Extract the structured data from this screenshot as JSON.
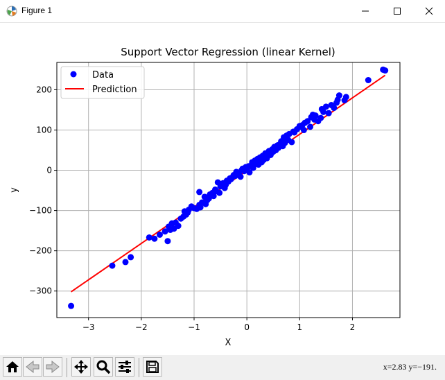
{
  "window": {
    "title": "Figure 1",
    "icons": [
      "app-icon",
      "minimize-icon",
      "maximize-icon",
      "close-icon"
    ]
  },
  "toolbar": {
    "buttons": [
      "home-icon",
      "back-icon",
      "forward-icon",
      "pan-icon",
      "zoom-icon",
      "subplots-icon",
      "save-icon"
    ],
    "coords_text": "x=2.83 y=−191."
  },
  "colors": {
    "data_points": "#0000ff",
    "prediction_line": "#ff0000",
    "grid": "#b0b0b0"
  },
  "chart_data": {
    "type": "scatter",
    "title": "Support Vector Regression (linear Kernel)",
    "xlabel": "X",
    "ylabel": "y",
    "xlim": [
      -3.6,
      2.9
    ],
    "ylim": [
      -366,
      268
    ],
    "xticks": [
      -3,
      -2,
      -1,
      0,
      1,
      2
    ],
    "xtick_labels": [
      "−3",
      "−2",
      "−1",
      "0",
      "1",
      "2"
    ],
    "yticks": [
      -300,
      -200,
      -100,
      0,
      100,
      200
    ],
    "ytick_labels": [
      "−300",
      "−200",
      "−100",
      "0",
      "100",
      "200"
    ],
    "grid": true,
    "legend": {
      "position": "top-left",
      "entries": [
        "Data",
        "Prediction"
      ]
    },
    "series": [
      {
        "name": "Data",
        "kind": "scatter",
        "x": [
          -3.33,
          -2.55,
          -2.3,
          -2.2,
          -1.85,
          -1.75,
          -1.65,
          -1.55,
          -1.5,
          -1.48,
          -1.45,
          -1.42,
          -1.38,
          -1.35,
          -1.3,
          -1.25,
          -1.2,
          -1.18,
          -1.15,
          -1.12,
          -1.1,
          -1.05,
          -1.0,
          -0.95,
          -0.9,
          -0.9,
          -0.88,
          -0.85,
          -0.8,
          -0.78,
          -0.75,
          -0.72,
          -0.7,
          -0.68,
          -0.65,
          -0.63,
          -0.6,
          -0.58,
          -0.55,
          -0.52,
          -0.5,
          -0.48,
          -0.45,
          -0.42,
          -0.4,
          -0.38,
          -0.35,
          -0.32,
          -0.3,
          -0.28,
          -0.25,
          -0.22,
          -0.2,
          -0.18,
          -0.15,
          -0.12,
          -0.1,
          -0.08,
          -0.05,
          -0.02,
          0.0,
          0.03,
          0.05,
          0.08,
          0.1,
          0.12,
          0.15,
          0.18,
          0.2,
          0.22,
          0.25,
          0.28,
          0.3,
          0.32,
          0.35,
          0.38,
          0.4,
          0.42,
          0.45,
          0.48,
          0.5,
          0.52,
          0.55,
          0.58,
          0.6,
          0.62,
          0.65,
          0.68,
          0.7,
          0.72,
          0.75,
          0.78,
          0.8,
          0.85,
          0.88,
          0.9,
          0.95,
          1.0,
          1.02,
          1.05,
          1.08,
          1.1,
          1.15,
          1.2,
          1.22,
          1.25,
          1.28,
          1.3,
          1.35,
          1.4,
          1.42,
          1.45,
          1.5,
          1.55,
          1.6,
          1.65,
          1.7,
          1.72,
          1.75,
          1.85,
          1.88,
          2.3,
          2.58,
          2.62
        ],
        "y": [
          -337,
          -237,
          -228,
          -216,
          -167,
          -170,
          -160,
          -152,
          -176,
          -140,
          -148,
          -132,
          -145,
          -130,
          -138,
          -120,
          -115,
          -102,
          -110,
          -105,
          -98,
          -90,
          -94,
          -96,
          -54,
          -86,
          -92,
          -80,
          -66,
          -84,
          -74,
          -70,
          -60,
          -62,
          -56,
          -64,
          -48,
          -52,
          -30,
          -56,
          -40,
          -34,
          -32,
          -44,
          -36,
          -26,
          -28,
          -20,
          -22,
          -18,
          -12,
          -14,
          -4,
          -10,
          -6,
          -16,
          0,
          4,
          -2,
          8,
          2,
          10,
          -5,
          12,
          20,
          6,
          24,
          16,
          28,
          14,
          32,
          20,
          36,
          26,
          42,
          30,
          40,
          48,
          38,
          52,
          46,
          58,
          50,
          62,
          56,
          64,
          72,
          60,
          82,
          68,
          86,
          76,
          90,
          70,
          96,
          94,
          102,
          110,
          108,
          112,
          100,
          118,
          122,
          108,
          132,
          138,
          126,
          136,
          122,
          130,
          152,
          145,
          158,
          142,
          162,
          155,
          168,
          175,
          186,
          174,
          182,
          224,
          250,
          248
        ]
      },
      {
        "name": "Prediction",
        "kind": "line",
        "x": [
          -3.33,
          2.62
        ],
        "y": [
          -302,
          236
        ]
      }
    ]
  }
}
